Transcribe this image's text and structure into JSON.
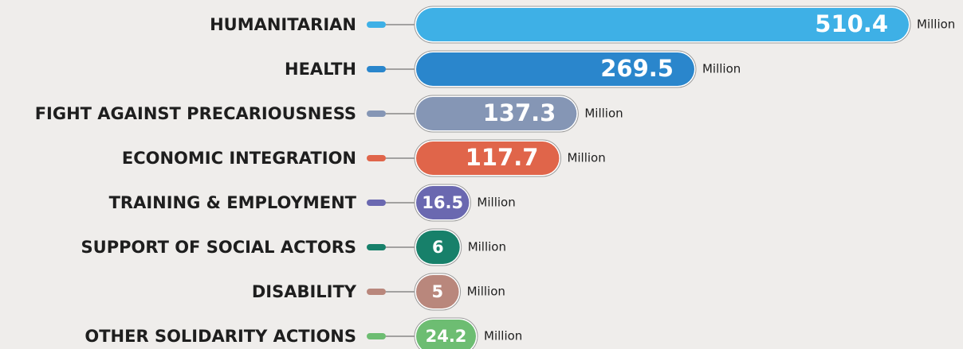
{
  "chart_data": {
    "type": "bar",
    "orientation": "horizontal",
    "categories": [
      "HUMANITARIAN",
      "HEALTH",
      "FIGHT AGAINST PRECARIOUSNESS",
      "ECONOMIC INTEGRATION",
      "TRAINING & EMPLOYMENT",
      "SUPPORT OF SOCIAL ACTORS",
      "DISABILITY",
      "OTHER SOLIDARITY ACTIONS"
    ],
    "values": [
      510.4,
      269.5,
      137.3,
      117.7,
      16.5,
      6,
      5,
      24.2
    ],
    "colors": [
      "#3eb0e6",
      "#2a86cc",
      "#8596b5",
      "#e0654a",
      "#6a68b0",
      "#17806a",
      "#b9877c",
      "#6dbd72"
    ],
    "unit": "Million"
  }
}
